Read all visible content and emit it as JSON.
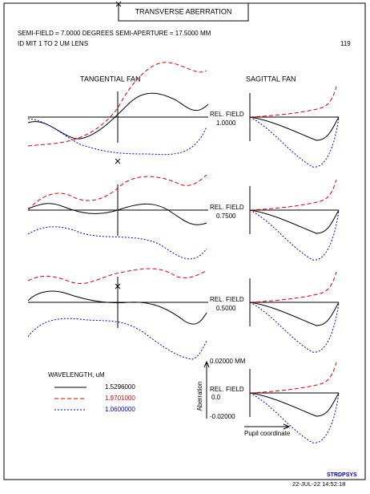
{
  "header": {
    "title": "TRANSVERSE ABERRATION",
    "semi_field": "SEMI-FIELD =    7.0000 DEGREES   SEMI-APERTURE =  17.5000 MM",
    "lens_id": "ID MIT 1 TO 2 UM LENS",
    "number": "119"
  },
  "fans": {
    "tangential": "TANGENTIAL FAN",
    "sagittal": "SAGITTAL FAN"
  },
  "rows": [
    {
      "label": "REL. FIELD",
      "value": "1.0000"
    },
    {
      "label": "REL. FIELD",
      "value": "0.7500"
    },
    {
      "label": "REL. FIELD",
      "value": "0.5000"
    },
    {
      "label": "REL. FIELD"
    }
  ],
  "axis": {
    "top": "0.02000 MM",
    "zero": "0.0",
    "bottom": "-0.02000",
    "y_label": "Aberration",
    "x_label": "Pupil coordinate"
  },
  "legend": {
    "title": "WAVELENGTH, uM",
    "items": [
      "1.5296000",
      "1.9701000",
      "1.0600000"
    ]
  },
  "footer": {
    "brand": "STRDPSYS",
    "timestamp": "22-JUL-22  14:52:18"
  }
}
